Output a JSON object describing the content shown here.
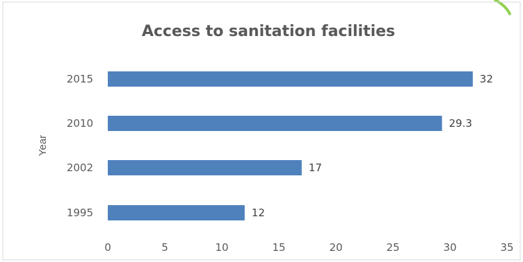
{
  "chart_data": {
    "type": "bar",
    "orientation": "horizontal",
    "title": "Access to sanitation facilities",
    "xlabel": "",
    "ylabel": "Year",
    "categories": [
      "1995",
      "2002",
      "2010",
      "2015"
    ],
    "values": [
      12,
      17,
      29.3,
      32
    ],
    "value_labels": [
      "12",
      "17",
      "29.3",
      "32"
    ],
    "xlim": [
      0,
      35
    ],
    "x_ticks": [
      0,
      5,
      10,
      15,
      20,
      25,
      30,
      35
    ],
    "x_tick_labels": [
      "0",
      "5",
      "10",
      "15",
      "20",
      "25",
      "30",
      "35"
    ],
    "grid": false,
    "legend": "none",
    "colors": {
      "bar": "#4f81bd",
      "frame": "#d9d9d9",
      "accent": "#92d050"
    }
  }
}
